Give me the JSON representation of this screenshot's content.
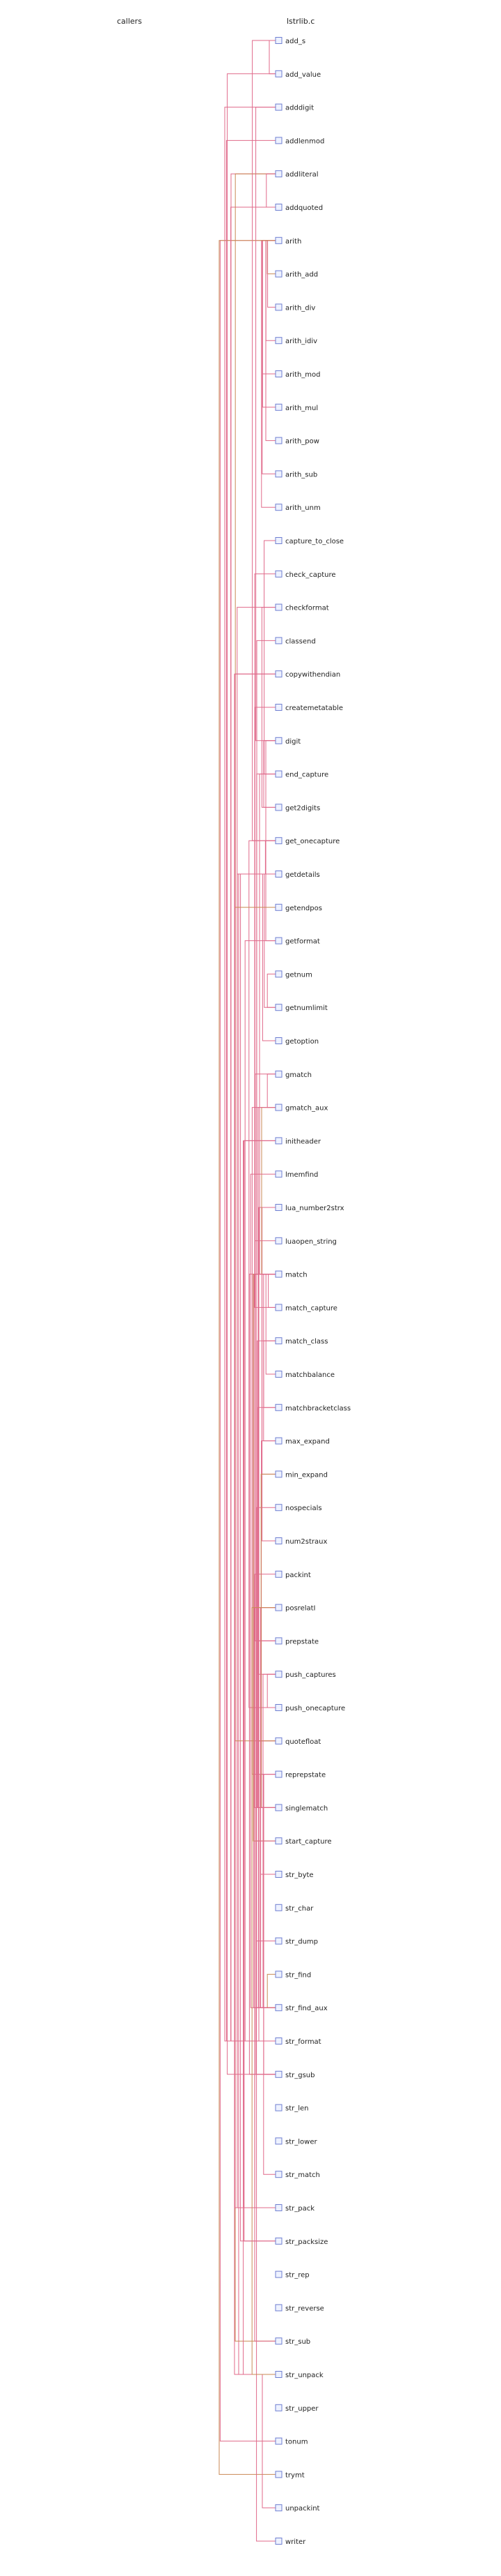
{
  "headers": {
    "callers": "callers",
    "file": "lstrlib.c"
  },
  "functions": [
    "add_s",
    "add_value",
    "adddigit",
    "addlenmod",
    "addliteral",
    "addquoted",
    "arith",
    "arith_add",
    "arith_div",
    "arith_idiv",
    "arith_mod",
    "arith_mul",
    "arith_pow",
    "arith_sub",
    "arith_unm",
    "capture_to_close",
    "check_capture",
    "checkformat",
    "classend",
    "copywithendian",
    "createmetatable",
    "digit",
    "end_capture",
    "get2digits",
    "get_onecapture",
    "getdetails",
    "getendpos",
    "getformat",
    "getnum",
    "getnumlimit",
    "getoption",
    "gmatch",
    "gmatch_aux",
    "initheader",
    "lmemfind",
    "lua_number2strx",
    "luaopen_string",
    "match",
    "match_capture",
    "match_class",
    "matchbalance",
    "matchbracketclass",
    "max_expand",
    "min_expand",
    "nospecials",
    "num2straux",
    "packint",
    "posrelatI",
    "prepstate",
    "push_captures",
    "push_onecapture",
    "quotefloat",
    "reprepstate",
    "singlematch",
    "start_capture",
    "str_byte",
    "str_char",
    "str_dump",
    "str_find",
    "str_find_aux",
    "str_format",
    "str_gsub",
    "str_len",
    "str_lower",
    "str_match",
    "str_pack",
    "str_packsize",
    "str_rep",
    "str_reverse",
    "str_sub",
    "str_unpack",
    "str_upper",
    "tonum",
    "trymt",
    "unpackint",
    "writer"
  ],
  "calls": [
    [
      "add_value",
      "add_s"
    ],
    [
      "str_gsub",
      "add_value"
    ],
    [
      "getnumlimit",
      "getnum"
    ],
    [
      "getdetails",
      "getnumlimit"
    ],
    [
      "getdetails",
      "getoption"
    ],
    [
      "str_pack",
      "getdetails"
    ],
    [
      "str_unpack",
      "getdetails"
    ],
    [
      "str_packsize",
      "getdetails"
    ],
    [
      "arith_add",
      "arith"
    ],
    [
      "arith_sub",
      "arith"
    ],
    [
      "arith_mul",
      "arith"
    ],
    [
      "arith_mod",
      "arith"
    ],
    [
      "arith_pow",
      "arith"
    ],
    [
      "arith_div",
      "arith"
    ],
    [
      "arith_idiv",
      "arith"
    ],
    [
      "arith_unm",
      "arith"
    ],
    [
      "arith",
      "tonum"
    ],
    [
      "arith",
      "trymt"
    ],
    [
      "str_format",
      "addliteral"
    ],
    [
      "str_format",
      "addquoted"
    ],
    [
      "str_format",
      "getformat"
    ],
    [
      "str_format",
      "checkformat"
    ],
    [
      "str_format",
      "addlenmod"
    ],
    [
      "str_format",
      "quotefloat"
    ],
    [
      "quotefloat",
      "lua_number2strx"
    ],
    [
      "lua_number2strx",
      "num2straux"
    ],
    [
      "addliteral",
      "quotefloat"
    ],
    [
      "addliteral",
      "addquoted"
    ],
    [
      "checkformat",
      "get2digits"
    ],
    [
      "get2digits",
      "digit"
    ],
    [
      "getformat",
      "digit"
    ],
    [
      "adddigit",
      "digit"
    ],
    [
      "gmatch",
      "gmatch_aux"
    ],
    [
      "gmatch",
      "prepstate"
    ],
    [
      "gmatch_aux",
      "reprepstate"
    ],
    [
      "gmatch_aux",
      "match"
    ],
    [
      "gmatch_aux",
      "push_captures"
    ],
    [
      "str_find_aux",
      "match"
    ],
    [
      "str_find_aux",
      "lmemfind"
    ],
    [
      "str_find_aux",
      "nospecials"
    ],
    [
      "str_find_aux",
      "prepstate"
    ],
    [
      "str_find_aux",
      "reprepstate"
    ],
    [
      "str_find_aux",
      "push_captures"
    ],
    [
      "str_find_aux",
      "posrelatI"
    ],
    [
      "str_find",
      "str_find_aux"
    ],
    [
      "str_match",
      "str_find_aux"
    ],
    [
      "str_gsub",
      "match"
    ],
    [
      "str_gsub",
      "prepstate"
    ],
    [
      "str_gsub",
      "reprepstate"
    ],
    [
      "add_value",
      "add_s"
    ],
    [
      "add_s",
      "get_onecapture"
    ],
    [
      "push_captures",
      "push_onecapture"
    ],
    [
      "push_onecapture",
      "get_onecapture"
    ],
    [
      "get_onecapture",
      "getdetails"
    ],
    [
      "match",
      "start_capture"
    ],
    [
      "match",
      "end_capture"
    ],
    [
      "match",
      "match_capture"
    ],
    [
      "match",
      "matchbalance"
    ],
    [
      "match",
      "max_expand"
    ],
    [
      "match",
      "min_expand"
    ],
    [
      "match",
      "singlematch"
    ],
    [
      "match",
      "classend"
    ],
    [
      "max_expand",
      "singlematch"
    ],
    [
      "min_expand",
      "singlematch"
    ],
    [
      "singlematch",
      "match_class"
    ],
    [
      "singlematch",
      "matchbracketclass"
    ],
    [
      "matchbracketclass",
      "match_class"
    ],
    [
      "match_capture",
      "check_capture"
    ],
    [
      "end_capture",
      "capture_to_close"
    ],
    [
      "start_capture",
      "match"
    ],
    [
      "end_capture",
      "match"
    ],
    [
      "str_byte",
      "posrelatI"
    ],
    [
      "str_sub",
      "getendpos"
    ],
    [
      "str_sub",
      "posrelatI"
    ],
    [
      "str_dump",
      "writer"
    ],
    [
      "str_pack",
      "packint"
    ],
    [
      "str_pack",
      "copywithendian"
    ],
    [
      "str_pack",
      "initheader"
    ],
    [
      "str_unpack",
      "unpackint"
    ],
    [
      "str_unpack",
      "copywithendian"
    ],
    [
      "str_unpack",
      "initheader"
    ],
    [
      "str_unpack",
      "posrelatI"
    ],
    [
      "str_packsize",
      "initheader"
    ],
    [
      "luaopen_string",
      "createmetatable"
    ],
    [
      "str_format",
      "adddigit"
    ]
  ]
}
